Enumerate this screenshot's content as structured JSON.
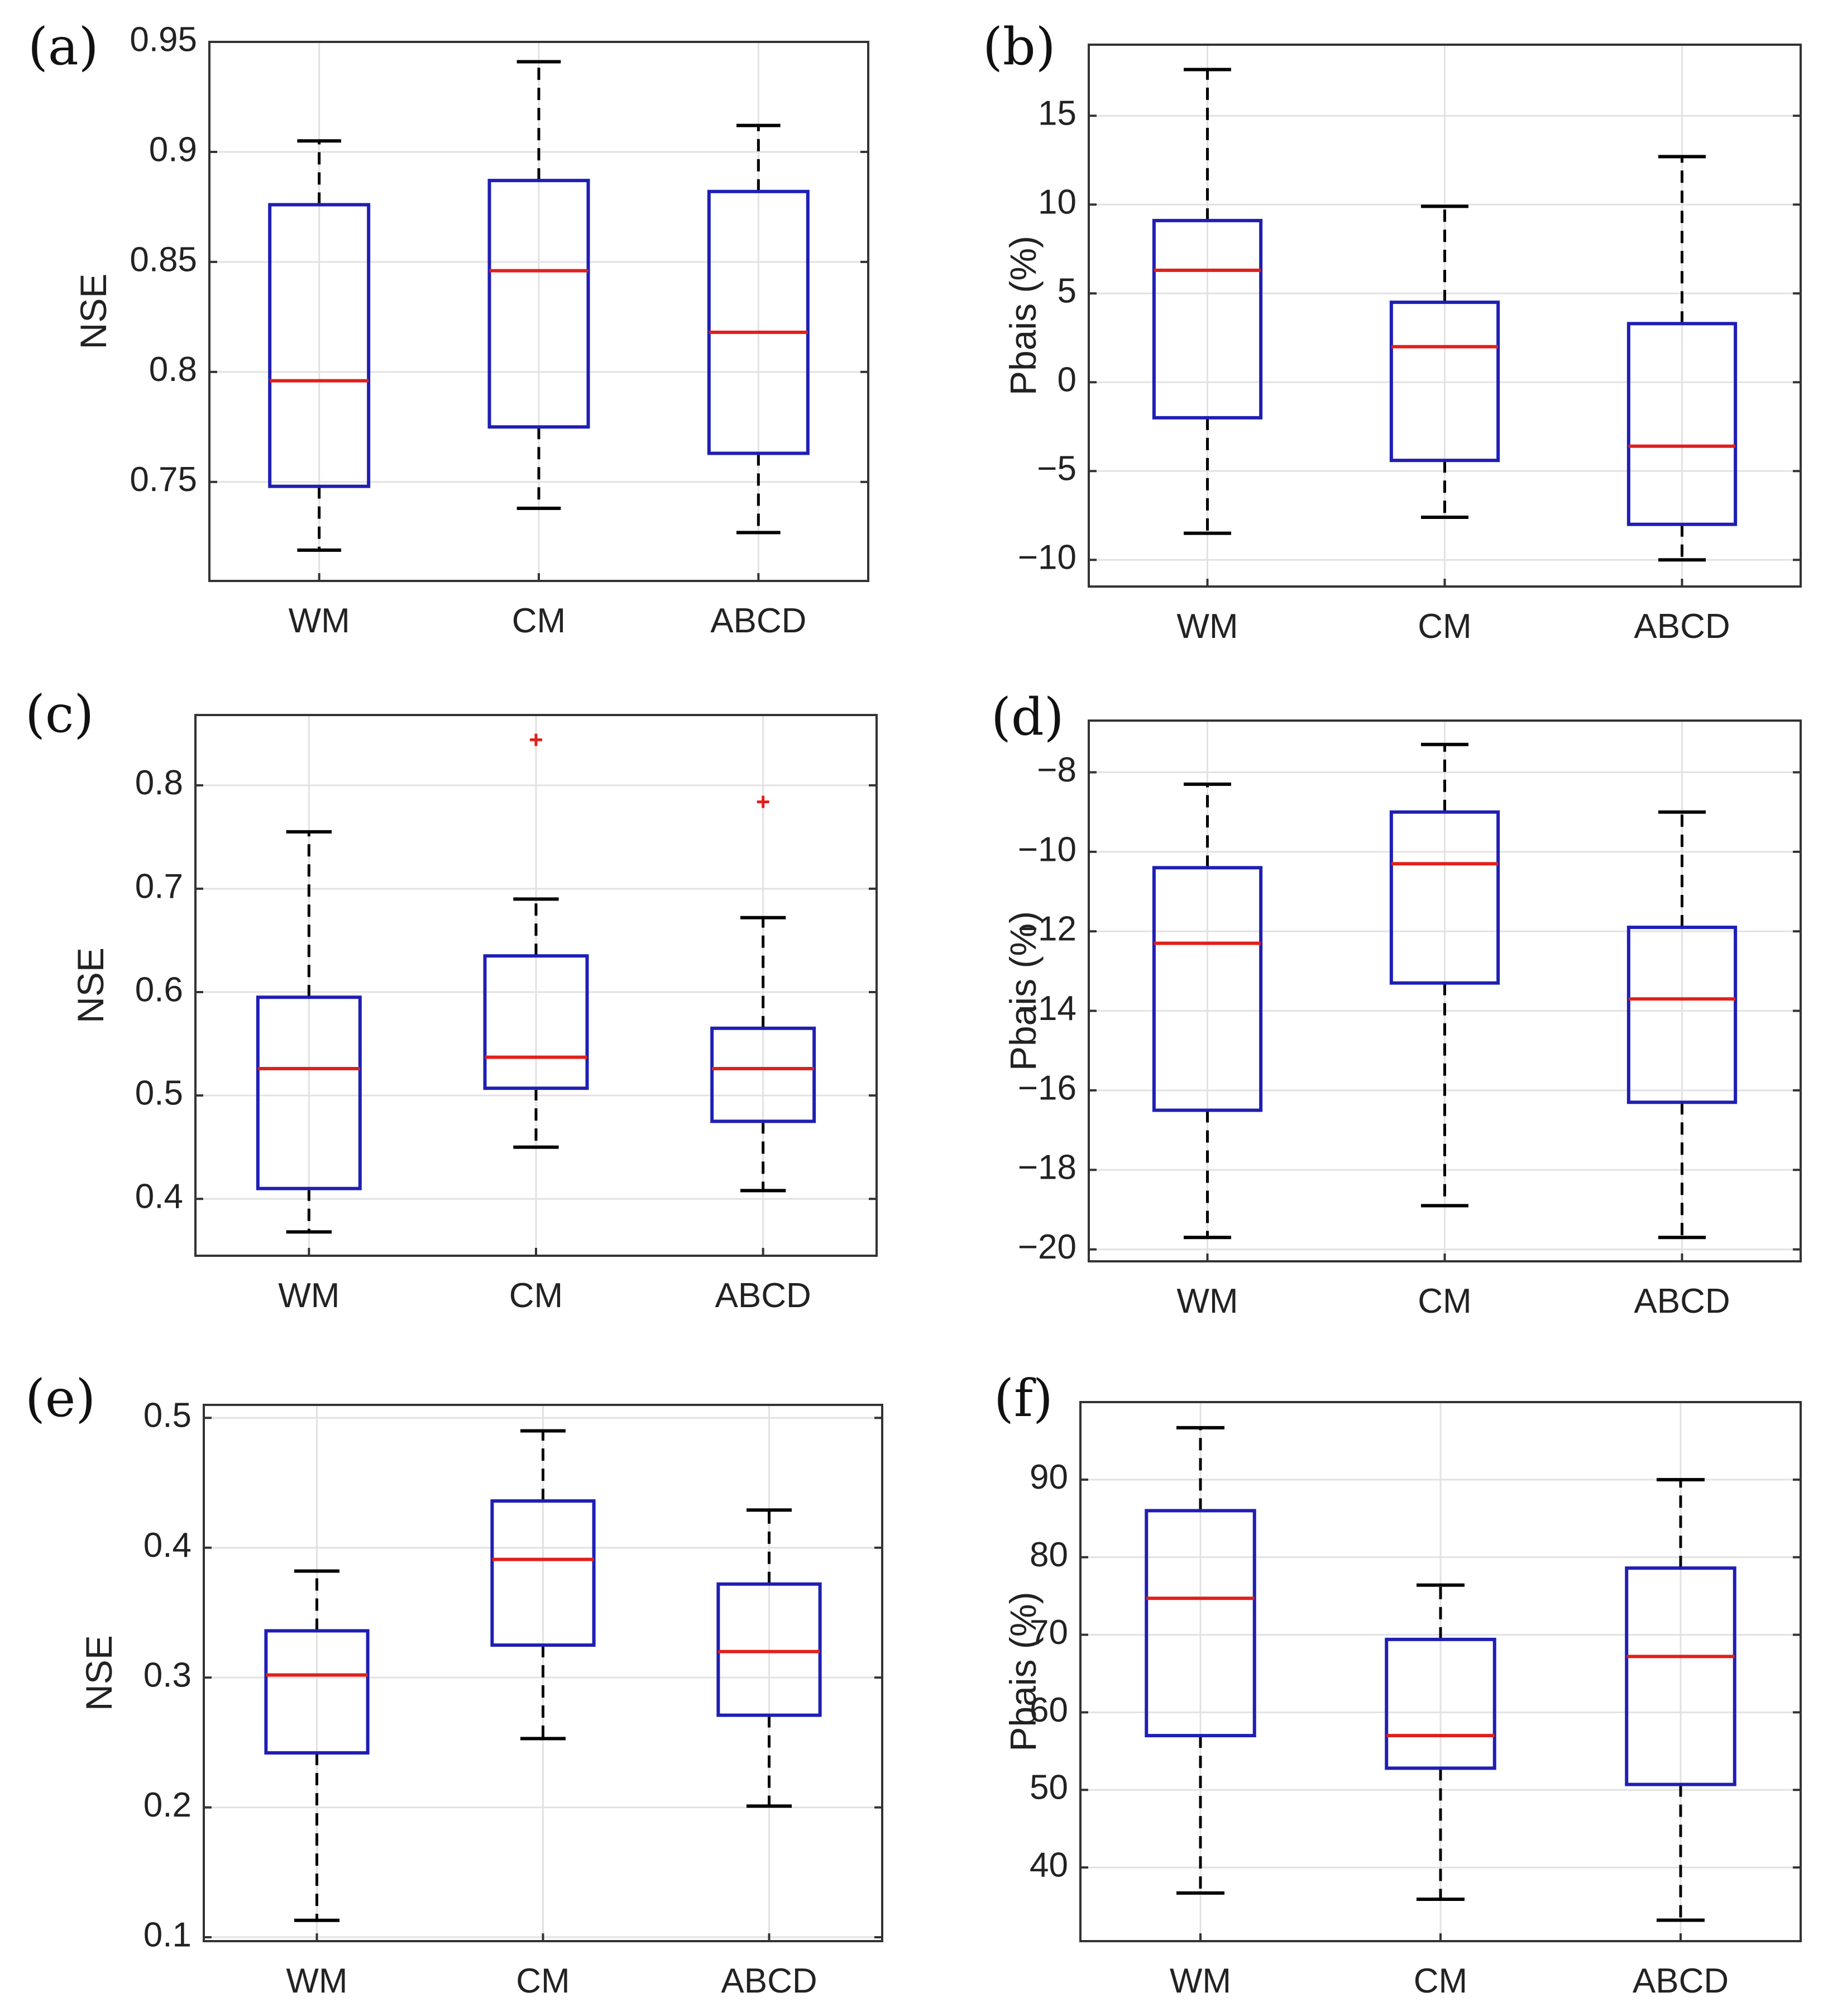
{
  "chart_data": [
    {
      "panel": "(a)",
      "type": "box",
      "ylabel": "NSE",
      "ylim": [
        0.705,
        0.95
      ],
      "yticks": [
        0.75,
        0.8,
        0.85,
        0.9,
        0.95
      ],
      "ytick_labels": [
        "0.75",
        "0.8",
        "0.85",
        "0.9",
        "0.95"
      ],
      "categories": [
        "WM",
        "CM",
        "ABCD"
      ],
      "boxes": [
        {
          "whisker_low": 0.719,
          "q1": 0.748,
          "median": 0.796,
          "q3": 0.876,
          "whisker_high": 0.905,
          "outliers": []
        },
        {
          "whisker_low": 0.738,
          "q1": 0.775,
          "median": 0.846,
          "q3": 0.887,
          "whisker_high": 0.941,
          "outliers": []
        },
        {
          "whisker_low": 0.727,
          "q1": 0.763,
          "median": 0.818,
          "q3": 0.882,
          "whisker_high": 0.912,
          "outliers": []
        }
      ],
      "grid": true
    },
    {
      "panel": "(b)",
      "type": "box",
      "ylabel": "Pbais (%)",
      "ylim": [
        -11.5,
        19
      ],
      "yticks": [
        -10,
        -5,
        0,
        5,
        10,
        15
      ],
      "ytick_labels": [
        "−10",
        "−5",
        "0",
        "5",
        "10",
        "15"
      ],
      "categories": [
        "WM",
        "CM",
        "ABCD"
      ],
      "boxes": [
        {
          "whisker_low": -8.5,
          "q1": -2.0,
          "median": 6.3,
          "q3": 9.1,
          "whisker_high": 17.6,
          "outliers": []
        },
        {
          "whisker_low": -7.6,
          "q1": -4.4,
          "median": 2.0,
          "q3": 4.5,
          "whisker_high": 9.9,
          "outliers": []
        },
        {
          "whisker_low": -10.0,
          "q1": -8.0,
          "median": -3.6,
          "q3": 3.3,
          "whisker_high": 12.7,
          "outliers": []
        }
      ],
      "grid": true
    },
    {
      "panel": "(c)",
      "type": "box",
      "ylabel": "NSE",
      "ylim": [
        0.345,
        0.868
      ],
      "yticks": [
        0.4,
        0.5,
        0.6,
        0.7,
        0.8
      ],
      "ytick_labels": [
        "0.4",
        "0.5",
        "0.6",
        "0.7",
        "0.8"
      ],
      "categories": [
        "WM",
        "CM",
        "ABCD"
      ],
      "boxes": [
        {
          "whisker_low": 0.368,
          "q1": 0.41,
          "median": 0.526,
          "q3": 0.595,
          "whisker_high": 0.755,
          "outliers": []
        },
        {
          "whisker_low": 0.45,
          "q1": 0.507,
          "median": 0.537,
          "q3": 0.635,
          "whisker_high": 0.69,
          "outliers": [
            0.844
          ]
        },
        {
          "whisker_low": 0.408,
          "q1": 0.475,
          "median": 0.526,
          "q3": 0.565,
          "whisker_high": 0.672,
          "outliers": [
            0.784
          ]
        }
      ],
      "grid": true
    },
    {
      "panel": "(d)",
      "type": "box",
      "ylabel": "Pbais (%)",
      "ylim": [
        -20.3,
        -6.7
      ],
      "yticks": [
        -20,
        -18,
        -16,
        -14,
        -12,
        -10,
        -8
      ],
      "ytick_labels": [
        "−20",
        "−18",
        "−16",
        "−14",
        "−12",
        "−10",
        "−8"
      ],
      "categories": [
        "WM",
        "CM",
        "ABCD"
      ],
      "boxes": [
        {
          "whisker_low": -19.7,
          "q1": -16.5,
          "median": -12.3,
          "q3": -10.4,
          "whisker_high": -8.3,
          "outliers": []
        },
        {
          "whisker_low": -18.9,
          "q1": -13.3,
          "median": -10.3,
          "q3": -9.0,
          "whisker_high": -7.3,
          "outliers": []
        },
        {
          "whisker_low": -19.7,
          "q1": -16.3,
          "median": -13.7,
          "q3": -11.9,
          "whisker_high": -9.0,
          "outliers": []
        }
      ],
      "grid": true
    },
    {
      "panel": "(e)",
      "type": "box",
      "ylabel": "NSE",
      "ylim": [
        0.097,
        0.51
      ],
      "yticks": [
        0.1,
        0.2,
        0.3,
        0.4,
        0.5
      ],
      "ytick_labels": [
        "0.1",
        "0.2",
        "0.3",
        "0.4",
        "0.5"
      ],
      "categories": [
        "WM",
        "CM",
        "ABCD"
      ],
      "boxes": [
        {
          "whisker_low": 0.113,
          "q1": 0.242,
          "median": 0.302,
          "q3": 0.336,
          "whisker_high": 0.382,
          "outliers": []
        },
        {
          "whisker_low": 0.253,
          "q1": 0.325,
          "median": 0.391,
          "q3": 0.436,
          "whisker_high": 0.49,
          "outliers": []
        },
        {
          "whisker_low": 0.201,
          "q1": 0.271,
          "median": 0.32,
          "q3": 0.372,
          "whisker_high": 0.429,
          "outliers": []
        }
      ],
      "grid": true
    },
    {
      "panel": "(f)",
      "type": "box",
      "ylabel": "Pbais (%)",
      "ylim": [
        30.5,
        100
      ],
      "yticks": [
        40,
        50,
        60,
        70,
        80,
        90
      ],
      "ytick_labels": [
        "40",
        "50",
        "60",
        "70",
        "80",
        "90"
      ],
      "categories": [
        "WM",
        "CM",
        "ABCD"
      ],
      "boxes": [
        {
          "whisker_low": 36.7,
          "q1": 57.0,
          "median": 74.7,
          "q3": 86.0,
          "whisker_high": 96.7,
          "outliers": []
        },
        {
          "whisker_low": 35.9,
          "q1": 52.8,
          "median": 57.0,
          "q3": 69.4,
          "whisker_high": 76.4,
          "outliers": []
        },
        {
          "whisker_low": 33.2,
          "q1": 50.7,
          "median": 67.2,
          "q3": 78.6,
          "whisker_high": 90.0,
          "outliers": []
        }
      ],
      "grid": true
    }
  ],
  "colors": {
    "box": "#1f1fb4",
    "median": "#e0201c",
    "whisker": "#000000",
    "outlier": "#e0201c",
    "grid": "#e2e2e2",
    "axes": "#333333"
  }
}
